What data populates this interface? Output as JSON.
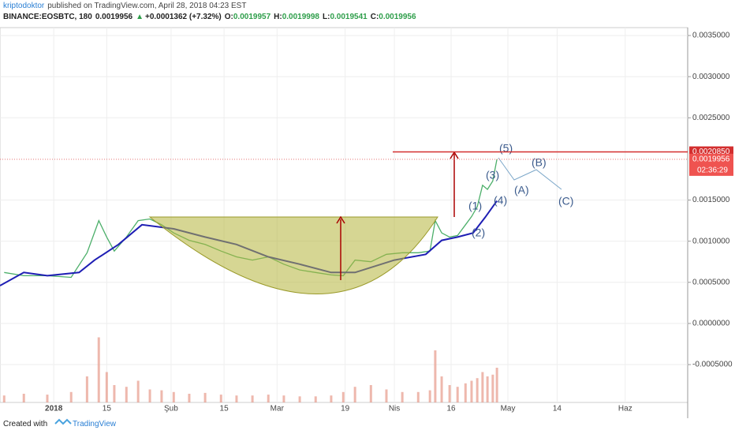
{
  "header": {
    "author": "kriptodoktor",
    "published": "published on TradingView.com, April 28, 2018 04:23 EST",
    "symbol": "BINANCE:EOSBTC, 180",
    "last": "0.0019956",
    "arrow": "▲",
    "change": "+0.0001362 (+7.32%)",
    "o_label": "O:",
    "o": "0.0019957",
    "h_label": "H:",
    "h": "0.0019998",
    "l_label": "L:",
    "l": "0.0019541",
    "c_label": "C:",
    "c": "0.0019956"
  },
  "footer": {
    "created": "Created with",
    "brand": "TradingView"
  },
  "chart_data": {
    "type": "line",
    "x": [
      -12.1,
      -6.9,
      -0.7,
      5.6,
      9.8,
      12.9,
      15,
      17,
      20.2,
      23.3,
      26.4,
      29.5,
      32.7,
      36.8,
      41,
      45.2,
      49.3,
      53.5,
      57.7,
      61.8,
      66,
      70.2,
      74.3,
      77.5,
      80.6,
      84.8,
      88.9,
      93.1,
      97.3,
      100.4,
      101.8,
      103.5,
      105.6,
      107.7,
      109.8,
      111.4,
      112.9,
      114.3,
      115.6,
      117,
      118.1
    ],
    "series": [
      {
        "color": "#4caf6a",
        "values": [
          0.00062,
          0.00058,
          0.00058,
          0.00056,
          0.00086,
          0.00125,
          0.00105,
          0.00088,
          0.00105,
          0.00125,
          0.00127,
          0.0012,
          0.0011,
          0.00101,
          0.00096,
          0.00088,
          0.00081,
          0.00077,
          0.00081,
          0.00072,
          0.00065,
          0.00062,
          0.00059,
          0.00058,
          0.00077,
          0.00075,
          0.00084,
          0.00086,
          0.00086,
          0.00088,
          0.00125,
          0.0011,
          0.00105,
          0.00107,
          0.0012,
          0.0013,
          0.00142,
          0.00168,
          0.00163,
          0.00173,
          0.0019956
        ]
      },
      {
        "color": "#1e1eb4",
        "x": [
          -13.2,
          -6.9,
          -0.7,
          7.7,
          11.8,
          18.1,
          24.3,
          32.7,
          41,
          49.3,
          57.7,
          66,
          74.3,
          80.6,
          91,
          99.3,
          103.5,
          107.7,
          111.8,
          115,
          118.1
        ],
        "values": [
          0.00046,
          0.00062,
          0.00058,
          0.00062,
          0.00077,
          0.00096,
          0.0012,
          0.00115,
          0.00105,
          0.00096,
          0.00081,
          0.00072,
          0.00062,
          0.00062,
          0.00077,
          0.00084,
          0.00101,
          0.00105,
          0.0011,
          0.00129,
          0.00149
        ]
      }
    ],
    "volume": {
      "color": "#e79a8a",
      "vlim": [
        0,
        100
      ],
      "values": [
        8,
        10,
        9,
        12,
        30,
        75,
        35,
        20,
        18,
        25,
        15,
        14,
        12,
        10,
        11,
        9,
        8,
        8,
        9,
        8,
        7,
        7,
        8,
        12,
        18,
        20,
        15,
        12,
        12,
        14,
        60,
        30,
        20,
        18,
        22,
        25,
        28,
        35,
        30,
        32,
        40
      ]
    },
    "xlim": [
      -13.2,
      168.5
    ],
    "xticks": [
      {
        "value": 1,
        "label": "2018"
      },
      {
        "value": 15,
        "label": "15"
      },
      {
        "value": 32,
        "label": "Şub"
      },
      {
        "value": 46,
        "label": "15"
      },
      {
        "value": 60,
        "label": "Mar"
      },
      {
        "value": 78,
        "label": "19"
      },
      {
        "value": 91,
        "label": "Nis"
      },
      {
        "value": 106,
        "label": "16"
      },
      {
        "value": 121,
        "label": "May"
      },
      {
        "value": 134,
        "label": "14"
      },
      {
        "value": 152,
        "label": "Haz"
      }
    ],
    "ylim": [
      -0.00096,
      0.003596
    ],
    "yticks": [
      {
        "value": -0.0005,
        "label": "-0.0005000"
      },
      {
        "value": 0,
        "label": "0.0000000"
      },
      {
        "value": 0.0005,
        "label": "0.0005000"
      },
      {
        "value": 0.001,
        "label": "0.0010000"
      },
      {
        "value": 0.0015,
        "label": "0.0015000"
      },
      {
        "value": 0.0025,
        "label": "0.0025000"
      },
      {
        "value": 0.003,
        "label": "0.0030000"
      },
      {
        "value": 0.0035,
        "label": "0.0035000"
      }
    ],
    "target": {
      "value": 0.002085,
      "label": "0.0020850",
      "color": "#d32f2f"
    },
    "last_price": 0.0019956,
    "countdown": "02:36:29",
    "waves": [
      "(1)",
      "(2)",
      "(3)",
      "(4)",
      "(5)",
      "(A)",
      "(B)",
      "(C)"
    ]
  }
}
